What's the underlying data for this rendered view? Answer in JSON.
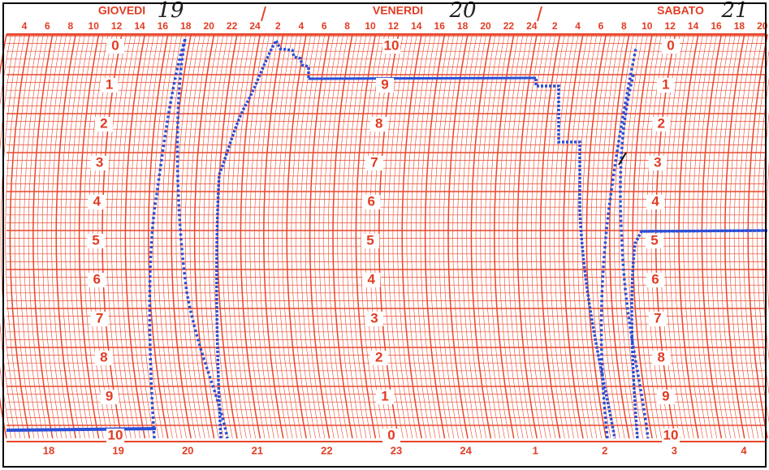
{
  "header": {
    "days": [
      {
        "name": "GIOVEDI",
        "date": "19"
      },
      {
        "name": "VENERDI",
        "date": "20"
      },
      {
        "name": "SABATO",
        "date": "21"
      }
    ]
  },
  "top_hours": [
    "4",
    "6",
    "8",
    "10",
    "12",
    "14",
    "16",
    "18",
    "20",
    "22",
    "24",
    "2",
    "4",
    "6",
    "8",
    "10",
    "12",
    "14",
    "16",
    "18",
    "20",
    "22",
    "24",
    "2",
    "4",
    "6",
    "8",
    "10",
    "12",
    "14",
    "16",
    "18",
    "20"
  ],
  "scales": [
    [
      "0",
      "1",
      "2",
      "3",
      "4",
      "5",
      "6",
      "7",
      "8",
      "9",
      "10"
    ],
    [
      "10",
      "9",
      "8",
      "7",
      "6",
      "5",
      "4",
      "3",
      "2",
      "1",
      "0"
    ],
    [
      "0",
      "1",
      "2",
      "3",
      "4",
      "5",
      "6",
      "7",
      "8",
      "9",
      "10"
    ]
  ],
  "bottom_labels": [
    "18",
    "19",
    "20",
    "21",
    "22",
    "23",
    "24",
    "1",
    "2",
    "3",
    "4"
  ]
}
